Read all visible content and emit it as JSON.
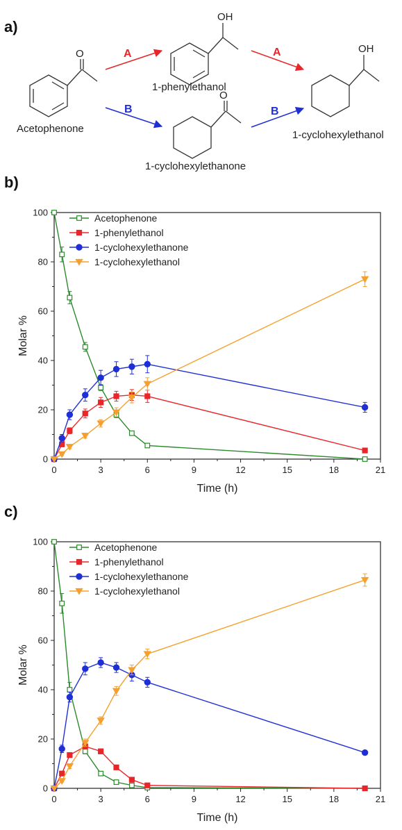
{
  "scheme": {
    "panel_label": "a)",
    "start": "Acetophenone",
    "mid_a": "1-phenylethanol",
    "mid_b": "1-cyclohexylethanone",
    "end": "1-cyclohexylethanol",
    "route_a": "A",
    "route_b": "B",
    "oh_label": "OH",
    "o_label": "O",
    "colors": {
      "route_a": "#e8262a",
      "route_b": "#1f2fd6"
    }
  },
  "chart_data": [
    {
      "panel_label": "b)",
      "type": "line",
      "xlabel": "Time (h)",
      "ylabel": "Molar %",
      "xlim": [
        0,
        21
      ],
      "ylim": [
        0,
        100
      ],
      "xticks": [
        0,
        3,
        6,
        9,
        12,
        15,
        18,
        21
      ],
      "yticks": [
        0,
        20,
        40,
        60,
        80,
        100
      ],
      "grid": false,
      "legend_position": "top-left",
      "x": [
        0,
        0.5,
        1,
        2,
        3,
        4,
        5,
        6,
        20
      ],
      "series": [
        {
          "name": "Acetophenone",
          "color": "#2a8a2a",
          "marker": "open-square",
          "values": [
            100,
            83,
            65.5,
            45.5,
            29,
            18,
            10.5,
            5.5,
            0
          ],
          "errors": [
            0,
            3,
            2.5,
            1.8,
            1.2,
            1.2,
            0.8,
            0.5,
            0
          ]
        },
        {
          "name": "1-phenylethanol",
          "color": "#e8262a",
          "marker": "filled-square",
          "values": [
            0,
            6,
            11.5,
            18.5,
            23,
            25.5,
            26,
            25.5,
            3.5
          ],
          "errors": [
            0,
            1,
            1.2,
            1.8,
            2,
            2,
            2.2,
            2.5,
            0.5
          ]
        },
        {
          "name": "1-cyclohexylethanone",
          "color": "#1f2fd6",
          "marker": "filled-circle",
          "values": [
            0,
            8.5,
            18,
            26,
            33,
            36.5,
            37.5,
            38.5,
            21
          ],
          "errors": [
            0,
            1.5,
            2,
            2.5,
            3,
            3,
            3,
            3.5,
            2
          ]
        },
        {
          "name": "1-cyclohexylethanol",
          "color": "#f5a02e",
          "marker": "filled-triangle-down",
          "values": [
            0,
            2,
            5,
            9.5,
            14.5,
            19,
            25,
            30.5,
            73
          ],
          "errors": [
            0,
            0.5,
            0.8,
            1,
            1.5,
            1.8,
            2.2,
            2.5,
            3
          ]
        }
      ]
    },
    {
      "panel_label": "c)",
      "type": "line",
      "xlabel": "Time (h)",
      "ylabel": "Molar %",
      "xlim": [
        0,
        21
      ],
      "ylim": [
        0,
        100
      ],
      "xticks": [
        0,
        3,
        6,
        9,
        12,
        15,
        18,
        21
      ],
      "yticks": [
        0,
        20,
        40,
        60,
        80,
        100
      ],
      "grid": false,
      "legend_position": "top-left",
      "x": [
        0,
        0.5,
        1,
        2,
        3,
        4,
        5,
        6,
        20
      ],
      "series": [
        {
          "name": "Acetophenone",
          "color": "#2a8a2a",
          "marker": "open-square",
          "values": [
            100,
            75,
            40,
            15,
            6,
            2.5,
            1.2,
            0.3,
            0
          ],
          "errors": [
            0,
            4,
            3,
            1,
            0.5,
            0.3,
            0.2,
            0,
            0
          ]
        },
        {
          "name": "1-phenylethanol",
          "color": "#e8262a",
          "marker": "filled-square",
          "values": [
            0,
            6,
            13.5,
            17,
            15,
            8.5,
            3.5,
            1.2,
            0
          ],
          "errors": [
            0,
            0.5,
            1,
            1,
            1,
            0.8,
            0.5,
            0.2,
            0
          ]
        },
        {
          "name": "1-cyclohexylethanone",
          "color": "#1f2fd6",
          "marker": "filled-circle",
          "values": [
            0,
            16,
            37,
            48.5,
            51,
            49,
            46,
            43,
            14.5
          ],
          "errors": [
            0,
            1.5,
            2,
            2.5,
            2,
            2,
            2.5,
            2,
            0.8
          ]
        },
        {
          "name": "1-cyclohexylethanol",
          "color": "#f5a02e",
          "marker": "filled-triangle-down",
          "values": [
            0,
            3,
            9,
            18.5,
            27.5,
            39.5,
            48,
            54.5,
            84.5
          ],
          "errors": [
            0,
            0.5,
            1,
            1.5,
            1.5,
            1.8,
            2,
            2,
            2.5
          ]
        }
      ]
    }
  ]
}
